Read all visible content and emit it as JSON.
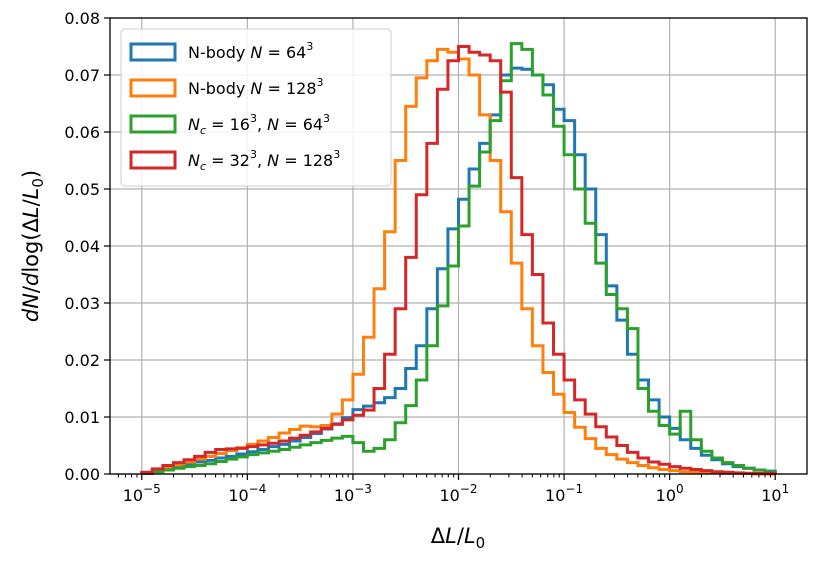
{
  "chart_data": {
    "type": "histogram-step",
    "title": "",
    "xlabel": "ΔL/L₀",
    "ylabel": "dN/dlog(ΔL/L₀)",
    "xscale": "log",
    "xlim": [
      5e-06,
      20
    ],
    "ylim": [
      0,
      0.08
    ],
    "grid": true,
    "legend_loc": "upper-left",
    "x_ticks": [
      {
        "value": 1e-05,
        "base": "10",
        "exp": "−5"
      },
      {
        "value": 0.0001,
        "base": "10",
        "exp": "−4"
      },
      {
        "value": 0.001,
        "base": "10",
        "exp": "−3"
      },
      {
        "value": 0.01,
        "base": "10",
        "exp": "−2"
      },
      {
        "value": 0.1,
        "base": "10",
        "exp": "−1"
      },
      {
        "value": 1,
        "base": "10",
        "exp": "0"
      },
      {
        "value": 10,
        "base": "10",
        "exp": "1"
      }
    ],
    "y_ticks": [
      {
        "value": 0.0,
        "label": "0.00"
      },
      {
        "value": 0.01,
        "label": "0.01"
      },
      {
        "value": 0.02,
        "label": "0.02"
      },
      {
        "value": 0.03,
        "label": "0.03"
      },
      {
        "value": 0.04,
        "label": "0.04"
      },
      {
        "value": 0.05,
        "label": "0.05"
      },
      {
        "value": 0.06,
        "label": "0.06"
      },
      {
        "value": 0.07,
        "label": "0.07"
      },
      {
        "value": 0.08,
        "label": "0.08"
      }
    ],
    "bins": {
      "log10_start": -5,
      "log10_stop": 1,
      "count": 60
    },
    "series": [
      {
        "name": "N-body N = 64³",
        "legend": {
          "prefix": "N-body ",
          "parts": [
            [
              "N",
              "i"
            ],
            [
              " = 64",
              ""
            ],
            [
              "3",
              "sup"
            ]
          ]
        },
        "color": "#1f77b4",
        "values": [
          0.0001,
          0.0005,
          0.0009,
          0.0013,
          0.0017,
          0.0021,
          0.0024,
          0.0028,
          0.0031,
          0.0035,
          0.0039,
          0.0043,
          0.0048,
          0.0052,
          0.0058,
          0.0064,
          0.0071,
          0.0079,
          0.0088,
          0.0099,
          0.0113,
          0.0119,
          0.0125,
          0.0134,
          0.015,
          0.0185,
          0.0225,
          0.029,
          0.036,
          0.043,
          0.0482,
          0.0535,
          0.058,
          0.063,
          0.07,
          0.0712,
          0.071,
          0.07,
          0.0683,
          0.064,
          0.062,
          0.056,
          0.05,
          0.042,
          0.033,
          0.027,
          0.021,
          0.0165,
          0.013,
          0.01,
          0.008,
          0.006,
          0.0045,
          0.0033,
          0.0025,
          0.0018,
          0.0013,
          0.001,
          0.0007,
          0.0005
        ]
      },
      {
        "name": "N-body N = 128³",
        "legend": {
          "prefix": "N-body ",
          "parts": [
            [
              "N",
              "i"
            ],
            [
              " = 128",
              ""
            ],
            [
              "3",
              "sup"
            ]
          ]
        },
        "color": "#ff7f0e",
        "values": [
          0.0002,
          0.0006,
          0.0011,
          0.0016,
          0.0021,
          0.0026,
          0.0031,
          0.0036,
          0.0041,
          0.0046,
          0.0052,
          0.0058,
          0.0064,
          0.0072,
          0.0078,
          0.0084,
          0.0083,
          0.0085,
          0.0105,
          0.013,
          0.0175,
          0.024,
          0.0325,
          0.0425,
          0.055,
          0.0645,
          0.0695,
          0.0725,
          0.0745,
          0.074,
          0.0728,
          0.07,
          0.063,
          0.055,
          0.046,
          0.037,
          0.029,
          0.0225,
          0.0178,
          0.014,
          0.0108,
          0.0082,
          0.0062,
          0.0045,
          0.0034,
          0.0026,
          0.002,
          0.0015,
          0.0011,
          0.0008,
          0.0006,
          0.0004,
          0.0003,
          0.0002,
          0.0002,
          0.0001,
          0.0001,
          0.0001,
          0.0,
          0.0
        ]
      },
      {
        "name": "Nc = 16³, N = 64³",
        "legend": {
          "prefix": "",
          "parts": [
            [
              "N",
              "i"
            ],
            [
              "c",
              "sub-i"
            ],
            [
              " = 16",
              ""
            ],
            [
              "3",
              "sup"
            ],
            [
              ", ",
              ""
            ],
            [
              "N",
              "i"
            ],
            [
              " = 64",
              ""
            ],
            [
              "3",
              "sup"
            ]
          ]
        },
        "color": "#2ca02c",
        "values": [
          0.0001,
          0.0004,
          0.0007,
          0.001,
          0.0013,
          0.0015,
          0.0018,
          0.0022,
          0.0026,
          0.003,
          0.0034,
          0.0037,
          0.004,
          0.0043,
          0.0047,
          0.0051,
          0.0055,
          0.0059,
          0.0063,
          0.0066,
          0.0055,
          0.004,
          0.0045,
          0.006,
          0.009,
          0.012,
          0.0165,
          0.0225,
          0.0295,
          0.0365,
          0.0435,
          0.0505,
          0.0565,
          0.062,
          0.069,
          0.0755,
          0.0745,
          0.07,
          0.0665,
          0.061,
          0.056,
          0.05,
          0.044,
          0.037,
          0.0315,
          0.029,
          0.0255,
          0.015,
          0.011,
          0.0085,
          0.007,
          0.011,
          0.006,
          0.004,
          0.0028,
          0.002,
          0.0015,
          0.001,
          0.0007,
          0.0004
        ]
      },
      {
        "name": "Nc = 32³, N = 128³",
        "legend": {
          "prefix": "",
          "parts": [
            [
              "N",
              "i"
            ],
            [
              "c",
              "sub-i"
            ],
            [
              " = 32",
              ""
            ],
            [
              "3",
              "sup"
            ],
            [
              ", ",
              ""
            ],
            [
              "N",
              "i"
            ],
            [
              " = 128",
              ""
            ],
            [
              "3",
              "sup"
            ]
          ]
        },
        "color": "#d62728",
        "values": [
          0.0003,
          0.0009,
          0.0015,
          0.002,
          0.0025,
          0.0031,
          0.0038,
          0.0043,
          0.0044,
          0.0045,
          0.0048,
          0.0051,
          0.0054,
          0.0058,
          0.0063,
          0.0068,
          0.0074,
          0.008,
          0.0087,
          0.0095,
          0.0103,
          0.0112,
          0.015,
          0.021,
          0.029,
          0.038,
          0.049,
          0.058,
          0.0675,
          0.0725,
          0.075,
          0.074,
          0.0735,
          0.0725,
          0.067,
          0.052,
          0.042,
          0.035,
          0.0265,
          0.021,
          0.0165,
          0.013,
          0.0105,
          0.0083,
          0.0065,
          0.005,
          0.0038,
          0.0028,
          0.0021,
          0.0017,
          0.0013,
          0.001,
          0.0008,
          0.0006,
          0.0004,
          0.0003,
          0.0002,
          0.0001,
          0.0001,
          0.0001
        ]
      }
    ]
  }
}
